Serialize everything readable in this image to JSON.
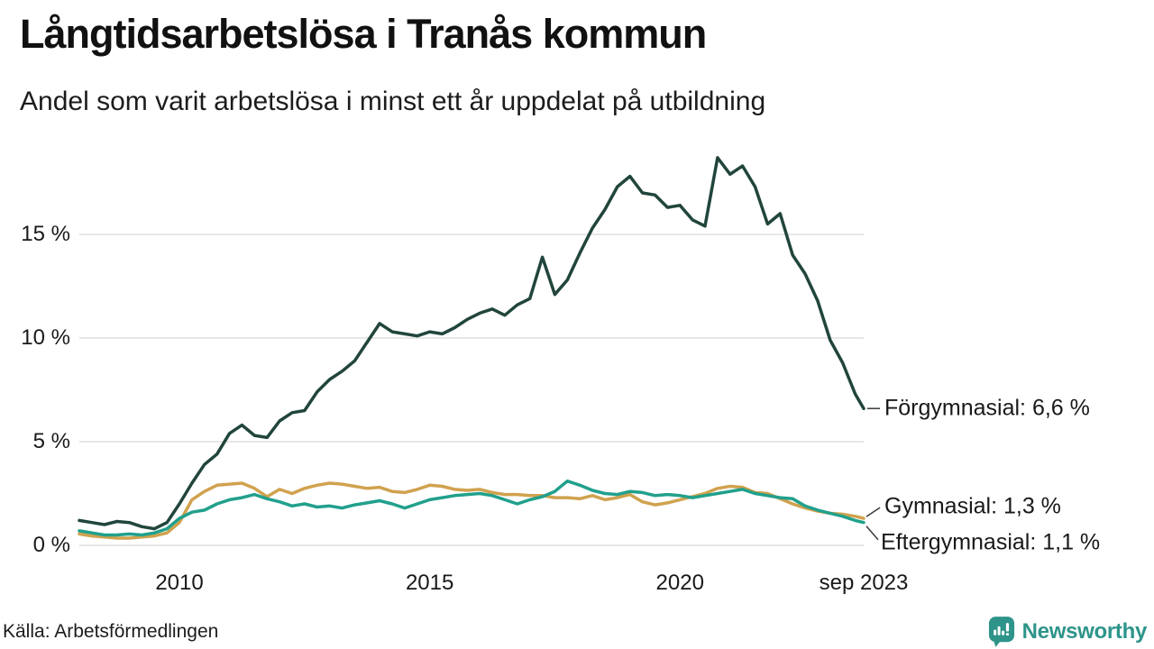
{
  "header": {
    "title": "Långtidsarbetslösa i Tranås kommun",
    "subtitle": "Andel som varit arbetslösa i minst ett år uppdelat på utbildning"
  },
  "colors": {
    "forgymnasial": "#21453c",
    "gymnasial": "#d0a24e",
    "eftergymnasial": "#21a08c",
    "grid": "#e7e7e7",
    "leader": "#3a3a3a",
    "brand_teal": "#2e948a",
    "text": "#191919"
  },
  "annotations": [
    {
      "series": "Förgymnasial",
      "label": "Förgymnasial: 6,6 %",
      "value": 6.6
    },
    {
      "series": "Gymnasial",
      "label": "Gymnasial: 1,3 %",
      "value": 1.3
    },
    {
      "series": "Eftergymnasial",
      "label": "Eftergymnasial: 1,1 %",
      "value": 1.1
    }
  ],
  "footer": {
    "source": "Källa: Arbetsförmedlingen",
    "brand": "Newsworthy"
  },
  "chart_data": {
    "type": "line",
    "title": "Långtidsarbetslösa i Tranås kommun",
    "subtitle": "Andel som varit arbetslösa i minst ett år uppdelat på utbildning",
    "unit": "percent",
    "grid": "horizontal",
    "legend_position": "end-of-line labels, right side",
    "xlim": [
      2008,
      2023.67
    ],
    "ylim": [
      0,
      19
    ],
    "x_ticks": [
      {
        "value": 2010,
        "label": "2010"
      },
      {
        "value": 2015,
        "label": "2015"
      },
      {
        "value": 2020,
        "label": "2020"
      },
      {
        "value": 2023.67,
        "label": "sep 2023"
      }
    ],
    "y_ticks": [
      {
        "value": 0,
        "label": "0 %"
      },
      {
        "value": 5,
        "label": "5 %"
      },
      {
        "value": 10,
        "label": "10 %"
      },
      {
        "value": 15,
        "label": "15 %"
      }
    ],
    "x": [
      2008,
      2008.25,
      2008.5,
      2008.75,
      2009,
      2009.25,
      2009.5,
      2009.75,
      2010,
      2010.25,
      2010.5,
      2010.75,
      2011,
      2011.25,
      2011.5,
      2011.75,
      2012,
      2012.25,
      2012.5,
      2012.75,
      2013,
      2013.25,
      2013.5,
      2013.75,
      2014,
      2014.25,
      2014.5,
      2014.75,
      2015,
      2015.25,
      2015.5,
      2015.75,
      2016,
      2016.25,
      2016.5,
      2016.75,
      2017,
      2017.25,
      2017.5,
      2017.75,
      2018,
      2018.25,
      2018.5,
      2018.75,
      2019,
      2019.25,
      2019.5,
      2019.75,
      2020,
      2020.25,
      2020.5,
      2020.75,
      2021,
      2021.25,
      2021.5,
      2021.75,
      2022,
      2022.25,
      2022.5,
      2022.75,
      2023,
      2023.25,
      2023.5,
      2023.67
    ],
    "series": [
      {
        "name": "Förgymnasial",
        "color_key": "forgymnasial",
        "end_value": 6.6,
        "values": [
          1.2,
          1.1,
          1.0,
          1.15,
          1.1,
          0.9,
          0.8,
          1.1,
          2.0,
          3.0,
          3.9,
          4.4,
          5.4,
          5.8,
          5.3,
          5.2,
          6.0,
          6.4,
          6.5,
          7.4,
          8.0,
          8.4,
          8.9,
          9.8,
          10.7,
          10.3,
          10.2,
          10.1,
          10.3,
          10.2,
          10.5,
          10.9,
          11.2,
          11.4,
          11.1,
          11.6,
          11.9,
          13.9,
          12.1,
          12.8,
          14.1,
          15.3,
          16.2,
          17.3,
          17.8,
          17.0,
          16.9,
          16.3,
          16.4,
          15.7,
          15.4,
          18.7,
          17.9,
          18.3,
          17.3,
          15.5,
          16.0,
          14.0,
          13.1,
          11.8,
          9.9,
          8.8,
          7.3,
          6.6
        ]
      },
      {
        "name": "Gymnasial",
        "color_key": "gymnasial",
        "end_value": 1.3,
        "values": [
          0.55,
          0.45,
          0.4,
          0.35,
          0.35,
          0.4,
          0.45,
          0.6,
          1.1,
          2.2,
          2.6,
          2.9,
          2.95,
          3.0,
          2.75,
          2.35,
          2.7,
          2.5,
          2.75,
          2.9,
          3.0,
          2.95,
          2.85,
          2.75,
          2.8,
          2.6,
          2.55,
          2.7,
          2.9,
          2.85,
          2.7,
          2.65,
          2.7,
          2.55,
          2.45,
          2.45,
          2.4,
          2.4,
          2.3,
          2.3,
          2.25,
          2.4,
          2.2,
          2.3,
          2.45,
          2.1,
          1.95,
          2.05,
          2.2,
          2.35,
          2.5,
          2.75,
          2.85,
          2.8,
          2.55,
          2.5,
          2.25,
          2.0,
          1.8,
          1.65,
          1.55,
          1.5,
          1.4,
          1.3
        ]
      },
      {
        "name": "Eftergymnasial",
        "color_key": "eftergymnasial",
        "end_value": 1.1,
        "values": [
          0.7,
          0.6,
          0.5,
          0.5,
          0.55,
          0.5,
          0.6,
          0.8,
          1.3,
          1.6,
          1.7,
          2.0,
          2.2,
          2.3,
          2.45,
          2.25,
          2.1,
          1.9,
          2.0,
          1.85,
          1.9,
          1.8,
          1.95,
          2.05,
          2.15,
          2.0,
          1.8,
          2.0,
          2.2,
          2.3,
          2.4,
          2.45,
          2.5,
          2.4,
          2.2,
          2.0,
          2.2,
          2.35,
          2.6,
          3.1,
          2.9,
          2.65,
          2.5,
          2.45,
          2.6,
          2.55,
          2.4,
          2.45,
          2.4,
          2.3,
          2.4,
          2.5,
          2.6,
          2.7,
          2.5,
          2.4,
          2.3,
          2.25,
          1.9,
          1.7,
          1.55,
          1.4,
          1.2,
          1.1
        ]
      }
    ]
  }
}
